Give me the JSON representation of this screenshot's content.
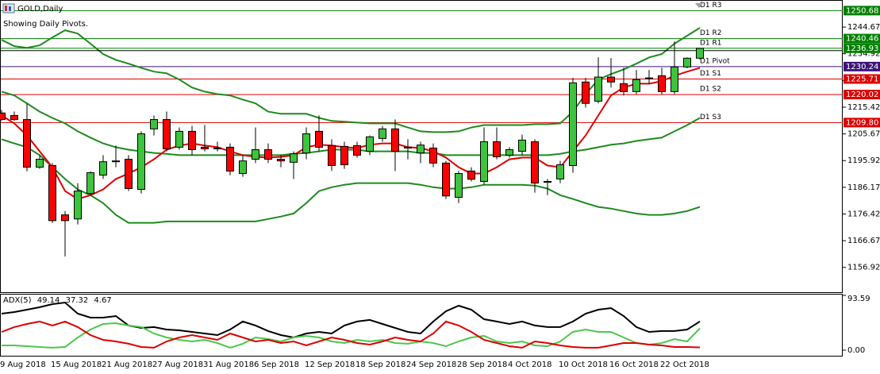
{
  "header": {
    "symbol": "GOLD,Daily",
    "note": "Showing Daily Pivots."
  },
  "chart_data": [
    {
      "type": "candlestick",
      "categories": [
        "9 Aug 2018",
        null,
        null,
        null,
        "15 Aug 2018",
        null,
        null,
        null,
        "21 Aug 2018",
        null,
        null,
        null,
        "27 Aug 2018",
        null,
        null,
        null,
        "31 Aug 2018",
        null,
        null,
        null,
        "6 Sep 2018",
        null,
        null,
        null,
        "12 Sep 2018",
        null,
        null,
        null,
        "18 Sep 2018",
        null,
        null,
        null,
        "24 Sep 2018",
        null,
        null,
        null,
        "28 Sep 2018",
        null,
        null,
        null,
        "4 Oct 2018",
        null,
        null,
        null,
        "10 Oct 2018",
        null,
        null,
        null,
        "16 Oct 2018",
        null,
        null,
        null,
        "22 Oct 2018",
        null,
        null,
        null
      ],
      "open": [
        1213.3,
        1212.4,
        1210.9,
        1193.5,
        1194.1,
        1176.1,
        1174.6,
        1183.9,
        1190.6,
        1195.5,
        1196.4,
        1185.4,
        1207.5,
        1210.9,
        1200.8,
        1206.6,
        1200.8,
        1200.5,
        1200.8,
        1191.2,
        1196.4,
        1199.9,
        1196.4,
        1195.3,
        1198.7,
        1206.6,
        1201.4,
        1201.1,
        1201.4,
        1199.3,
        1204.0,
        1207.5,
        1200.8,
        1198.7,
        1200.5,
        1195.0,
        1182.5,
        1192.1,
        1188.3,
        1202.8,
        1197.9,
        1199.3,
        1202.8,
        1188.3,
        1189.2,
        1194.1,
        1224.6,
        1217.6,
        1226.4,
        1224.0,
        1221.1,
        1226.1,
        1226.9,
        1221.1,
        1230.1,
        1233.3
      ],
      "high": [
        1214.4,
        1213.8,
        1216.8,
        1197.9,
        1195.0,
        1177.5,
        1187.7,
        1192.0,
        1197.9,
        1201.4,
        1197.9,
        1206.6,
        1212.4,
        1213.8,
        1208.0,
        1208.6,
        1208.9,
        1202.8,
        1202.2,
        1197.9,
        1208.0,
        1202.2,
        1197.9,
        1199.3,
        1208.0,
        1212.4,
        1203.7,
        1202.8,
        1202.8,
        1205.1,
        1208.6,
        1210.9,
        1203.7,
        1202.8,
        1202.2,
        1195.8,
        1192.1,
        1193.5,
        1208.0,
        1208.0,
        1200.8,
        1205.4,
        1203.7,
        1189.2,
        1195.8,
        1226.1,
        1226.1,
        1233.6,
        1233.3,
        1229.8,
        1229.0,
        1229.0,
        1229.8,
        1239.4,
        1233.6,
        1237.1
      ],
      "low": [
        1210.4,
        1210.4,
        1192.0,
        1192.9,
        1173.2,
        1160.9,
        1172.6,
        1183.3,
        1189.2,
        1193.5,
        1184.8,
        1183.9,
        1205.1,
        1199.3,
        1199.9,
        1197.9,
        1199.3,
        1199.3,
        1190.6,
        1190.0,
        1195.0,
        1195.0,
        1193.5,
        1189.2,
        1196.4,
        1199.3,
        1192.1,
        1192.9,
        1197.0,
        1197.9,
        1202.8,
        1192.1,
        1196.4,
        1195.0,
        1193.5,
        1181.9,
        1180.4,
        1188.3,
        1187.1,
        1196.4,
        1197.0,
        1197.9,
        1184.2,
        1183.3,
        1187.7,
        1191.5,
        1215.3,
        1216.8,
        1222.6,
        1219.7,
        1220.2,
        1224.0,
        1220.2,
        1220.2,
        1229.6,
        1232.8
      ],
      "close": [
        1210.9,
        1210.9,
        1193.5,
        1196.4,
        1174.0,
        1174.0,
        1184.8,
        1191.5,
        1195.5,
        1195.8,
        1185.7,
        1205.7,
        1210.9,
        1200.2,
        1206.6,
        1199.9,
        1200.2,
        1200.2,
        1192.1,
        1195.8,
        1199.9,
        1196.4,
        1195.8,
        1198.4,
        1205.7,
        1200.8,
        1194.1,
        1194.4,
        1197.9,
        1204.6,
        1207.5,
        1199.3,
        1200.5,
        1201.6,
        1195.0,
        1183.0,
        1191.2,
        1189.1,
        1202.8,
        1197.3,
        1199.9,
        1203.4,
        1187.7,
        1188.0,
        1194.4,
        1224.3,
        1216.8,
        1226.4,
        1224.6,
        1221.1,
        1225.5,
        1225.8,
        1221.1,
        1230.1,
        1233.3,
        1236.93
      ],
      "up_color": "#3cc43c",
      "down_color": "#ff0000",
      "series": [
        {
          "color": "#1e8a1e",
          "values": [
            1240.0,
            1237.7,
            1237.1,
            1238.0,
            1240.9,
            1243.5,
            1242.3,
            1238.6,
            1234.8,
            1232.7,
            1231.3,
            1229.8,
            1228.4,
            1227.8,
            1225.5,
            1222.6,
            1221.1,
            1220.2,
            1219.7,
            1218.2,
            1216.8,
            1213.8,
            1213.0,
            1213.0,
            1213.0,
            1211.5,
            1210.4,
            1210.1,
            1209.8,
            1209.5,
            1209.5,
            1209.5,
            1208.0,
            1206.6,
            1206.3,
            1206.3,
            1206.6,
            1208.0,
            1208.9,
            1208.9,
            1208.9,
            1208.9,
            1209.2,
            1209.2,
            1209.5,
            1213.8,
            1220.2,
            1225.5,
            1227.5,
            1229.2,
            1231.3,
            1233.6,
            1234.8,
            1238.6,
            1241.5,
            1244.4
          ]
        },
        {
          "color": "#1e8a1e",
          "values": [
            1221.1,
            1219.7,
            1216.8,
            1213.8,
            1211.5,
            1209.5,
            1206.6,
            1204.3,
            1202.2,
            1200.8,
            1199.9,
            1199.3,
            1198.7,
            1198.4,
            1197.9,
            1197.9,
            1197.9,
            1197.9,
            1197.9,
            1197.9,
            1197.9,
            1197.9,
            1197.9,
            1198.4,
            1198.7,
            1199.3,
            1199.9,
            1199.9,
            1199.9,
            1199.3,
            1199.3,
            1199.3,
            1199.3,
            1198.7,
            1198.7,
            1197.9,
            1197.9,
            1197.9,
            1197.9,
            1197.9,
            1197.9,
            1197.9,
            1197.9,
            1197.9,
            1198.4,
            1199.3,
            1199.9,
            1200.8,
            1201.7,
            1202.2,
            1203.1,
            1203.7,
            1204.3,
            1206.6,
            1208.9,
            1211.5
          ]
        },
        {
          "color": "#1e8a1e",
          "values": [
            1203.7,
            1202.2,
            1200.8,
            1197.9,
            1193.5,
            1189.2,
            1185.4,
            1183.3,
            1180.4,
            1176.1,
            1173.2,
            1173.2,
            1173.2,
            1173.7,
            1173.7,
            1173.7,
            1173.7,
            1173.7,
            1173.7,
            1173.7,
            1173.7,
            1174.6,
            1175.5,
            1176.6,
            1180.4,
            1184.8,
            1186.2,
            1187.1,
            1187.7,
            1187.7,
            1187.7,
            1187.7,
            1187.7,
            1187.1,
            1186.2,
            1185.7,
            1185.7,
            1186.2,
            1187.1,
            1187.1,
            1187.1,
            1187.1,
            1186.8,
            1185.7,
            1183.3,
            1181.9,
            1180.4,
            1179.0,
            1178.4,
            1177.5,
            1176.6,
            1176.1,
            1176.1,
            1176.6,
            1177.5,
            1179.0
          ]
        },
        {
          "color": "#e00000",
          "values": [
            1212.4,
            1209.5,
            1205.1,
            1199.3,
            1193.5,
            1184.8,
            1181.9,
            1183.3,
            1185.4,
            1189.2,
            1191.2,
            1193.5,
            1196.4,
            1199.9,
            1201.4,
            1202.2,
            1201.4,
            1200.8,
            1199.3,
            1197.9,
            1197.3,
            1197.0,
            1197.3,
            1197.9,
            1200.8,
            1201.7,
            1201.4,
            1200.8,
            1200.5,
            1201.7,
            1202.2,
            1202.2,
            1200.8,
            1200.5,
            1199.3,
            1197.0,
            1193.5,
            1191.2,
            1191.2,
            1193.5,
            1196.4,
            1197.0,
            1197.0,
            1194.1,
            1193.5,
            1199.3,
            1205.1,
            1212.4,
            1219.7,
            1222.6,
            1224.0,
            1224.0,
            1224.9,
            1226.9,
            1228.4,
            1229.8
          ]
        }
      ],
      "levels": [
        {
          "name": "D1 R3",
          "value": 1250.68,
          "value_label": "1250.68",
          "color": "#008000"
        },
        {
          "name": "D1 R2",
          "value": 1240.46,
          "value_label": "1240.46",
          "color": "#008000"
        },
        {
          "name": "D1 R1",
          "value": 1236.93,
          "value_label": "1236.93",
          "color": "#008000"
        },
        {
          "name": "D1 Pivot",
          "value": 1230.24,
          "value_label": "1230.24",
          "color": "#3c1478"
        },
        {
          "name": "D1 S1",
          "value": 1225.71,
          "value_label": "1225.71",
          "color": "#dd0000"
        },
        {
          "name": "D1 S2",
          "value": 1220.02,
          "value_label": "1220.02",
          "color": "#dd0000"
        },
        {
          "name": "D1 S3",
          "value": 1209.8,
          "value_label": "1209.80",
          "color": "#dd0000"
        }
      ],
      "ylim": [
        1147.86,
        1254.55
      ],
      "yticks": [
        1244.67,
        1234.92,
        1225.17,
        1215.42,
        1205.67,
        1195.92,
        1186.17,
        1176.42,
        1166.67,
        1156.92
      ]
    },
    {
      "type": "line",
      "title": "ADX(5)",
      "series": [
        {
          "color": "#000000",
          "values": [
            62.4,
            65.1,
            69.2,
            73.3,
            78.7,
            81.4,
            62.4,
            55.6,
            55.6,
            58.3,
            42.1,
            38.0,
            39.4,
            35.3,
            33.9,
            31.2,
            28.5,
            25.8,
            35.3,
            48.9,
            42.1,
            32.6,
            25.8,
            21.7,
            28.5,
            31.2,
            28.5,
            42.1,
            48.9,
            51.6,
            44.8,
            38.0,
            31.2,
            28.5,
            48.9,
            66.5,
            76.0,
            69.2,
            52.9,
            48.9,
            44.8,
            48.9,
            42.1,
            39.4,
            39.4,
            48.9,
            62.4,
            69.2,
            71.9,
            58.3,
            39.4,
            31.2,
            32.6,
            32.6,
            35.3,
            49.14
          ]
        },
        {
          "color": "#4cc84c",
          "values": [
            8.1,
            8.1,
            6.8,
            5.4,
            4.1,
            5.4,
            21.7,
            35.3,
            44.8,
            46.1,
            42.1,
            39.4,
            28.5,
            21.7,
            17.6,
            14.9,
            17.6,
            12.2,
            4.1,
            10.9,
            21.7,
            19.0,
            14.9,
            21.7,
            24.4,
            21.7,
            14.9,
            12.2,
            17.6,
            14.9,
            17.6,
            12.2,
            10.9,
            14.9,
            12.2,
            6.8,
            14.9,
            21.7,
            24.4,
            14.9,
            12.2,
            14.9,
            8.1,
            6.8,
            14.9,
            31.2,
            35.3,
            31.2,
            31.2,
            21.7,
            12.2,
            9.5,
            12.2,
            19.0,
            14.9,
            37.32
          ]
        },
        {
          "color": "#dd0000",
          "values": [
            31.2,
            39.4,
            44.8,
            48.9,
            42.1,
            48.9,
            39.4,
            25.8,
            17.6,
            14.9,
            10.9,
            5.4,
            4.1,
            14.9,
            21.7,
            25.8,
            21.7,
            17.6,
            28.5,
            21.7,
            14.9,
            17.6,
            12.2,
            14.9,
            8.1,
            14.9,
            21.7,
            17.6,
            12.2,
            9.5,
            14.9,
            21.7,
            17.6,
            14.9,
            28.5,
            48.9,
            42.1,
            31.2,
            17.6,
            12.2,
            6.8,
            4.1,
            14.9,
            12.2,
            8.1,
            5.4,
            4.1,
            4.1,
            8.1,
            12.2,
            12.2,
            9.5,
            8.1,
            5.4,
            5.4,
            4.67
          ]
        }
      ],
      "ylim": [
        -10.9,
        96.3
      ],
      "yticks": [
        93.59,
        {
          "value": 0,
          "label": "0.00"
        }
      ]
    }
  ]
}
